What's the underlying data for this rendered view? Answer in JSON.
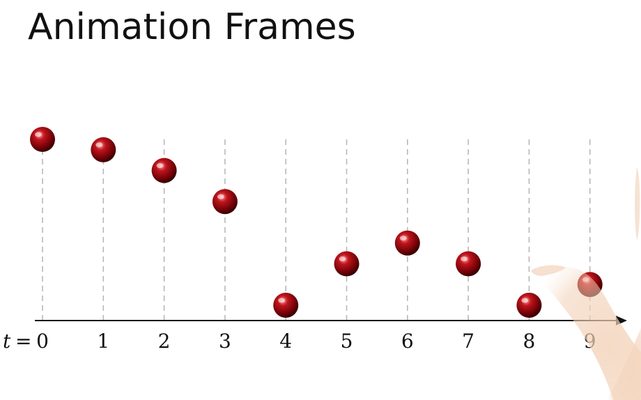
{
  "slide": {
    "title": "Animation Frames"
  },
  "axis": {
    "variable": "t",
    "equals": "="
  },
  "frames": [
    {
      "t": "0",
      "height": 4.0
    },
    {
      "t": "1",
      "height": 3.75
    },
    {
      "t": "2",
      "height": 3.25
    },
    {
      "t": "3",
      "height": 2.5
    },
    {
      "t": "4",
      "height": 0.0
    },
    {
      "t": "5",
      "height": 1.0
    },
    {
      "t": "6",
      "height": 1.5
    },
    {
      "t": "7",
      "height": 1.0
    },
    {
      "t": "8",
      "height": 0.0
    },
    {
      "t": "9",
      "height": 0.5
    }
  ],
  "colors": {
    "ball_highlight": "#ff9a9a",
    "ball_main": "#c0141c",
    "ball_shadow": "#3a0000",
    "guide_line": "#b8b8b8",
    "axis": "#111111",
    "hand": "#f1ccb0"
  },
  "decorations": {
    "hand_overlay": "presenter-hand"
  }
}
